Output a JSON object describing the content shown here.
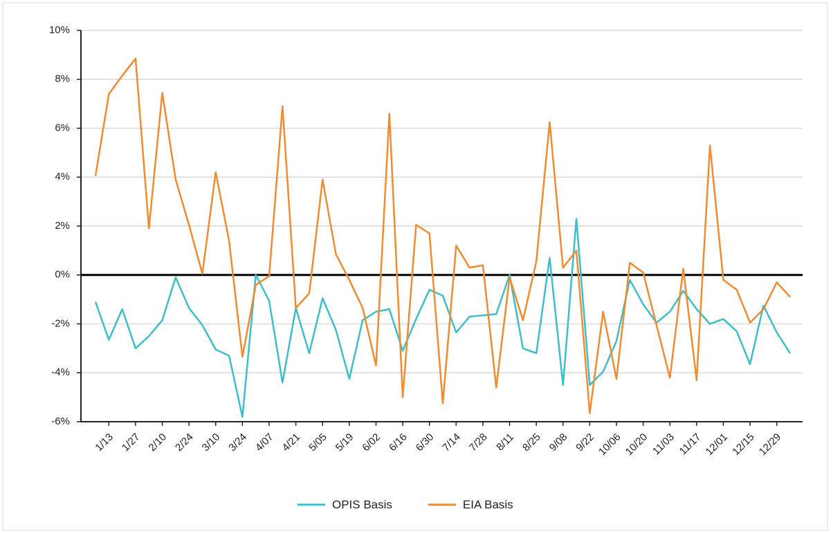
{
  "chart_data": {
    "type": "line",
    "categories": [
      null,
      "1/13",
      null,
      "1/27",
      null,
      "2/10",
      null,
      "2/24",
      null,
      "3/10",
      null,
      "3/24",
      null,
      "4/07",
      null,
      "4/21",
      null,
      "5/05",
      null,
      "5/19",
      null,
      "6/02",
      null,
      "6/16",
      null,
      "6/30",
      null,
      "7/14",
      null,
      "7/28",
      null,
      "8/11",
      null,
      "8/25",
      null,
      "9/08",
      null,
      "9/22",
      null,
      "10/06",
      null,
      "10/20",
      null,
      "11/03",
      null,
      "11/17",
      null,
      "12/01",
      null,
      "12/15",
      null,
      "12/29",
      null
    ],
    "series": [
      {
        "name": "OPIS Basis",
        "color": "#3bbfcc",
        "values": [
          -1.1,
          -2.65,
          -1.4,
          -3.0,
          -2.5,
          -1.85,
          -0.1,
          -1.35,
          -2.05,
          -3.05,
          -3.3,
          -5.8,
          0.0,
          -1.05,
          -4.4,
          -1.35,
          -3.2,
          -0.95,
          -2.25,
          -4.25,
          -1.85,
          -1.5,
          -1.4,
          -3.1,
          -1.8,
          -0.6,
          -0.85,
          -2.35,
          -1.7,
          -1.65,
          -1.6,
          0.0,
          -3.0,
          -3.2,
          0.7,
          -4.5,
          2.3,
          -4.5,
          -3.95,
          -2.7,
          -0.2,
          -1.2,
          -1.95,
          -1.5,
          -0.65,
          -1.4,
          -2.0,
          -1.8,
          -2.3,
          -3.65,
          -1.25,
          -2.35,
          -3.2
        ]
      },
      {
        "name": "EIA Basis",
        "color": "#f28a2e",
        "values": [
          4.05,
          7.4,
          8.15,
          8.85,
          1.9,
          7.45,
          3.9,
          2.05,
          0.05,
          4.2,
          1.4,
          -3.35,
          -0.4,
          -0.05,
          6.9,
          -1.35,
          -0.75,
          3.9,
          0.85,
          -0.2,
          -1.35,
          -3.7,
          6.6,
          -5.0,
          2.05,
          1.7,
          -5.25,
          1.2,
          0.3,
          0.4,
          -4.6,
          -0.1,
          -1.85,
          0.55,
          6.25,
          0.3,
          1.0,
          -5.65,
          -1.5,
          -4.25,
          0.5,
          0.1,
          -2.05,
          -4.2,
          0.25,
          -4.3,
          5.3,
          -0.2,
          -0.6,
          -1.95,
          -1.4,
          -0.3,
          -0.9
        ]
      }
    ],
    "ylim": [
      -6,
      10
    ],
    "yticks": [
      {
        "value": -6,
        "label": "-6%"
      },
      {
        "value": -4,
        "label": "-4%"
      },
      {
        "value": -2,
        "label": "-2%"
      },
      {
        "value": 0,
        "label": "0%"
      },
      {
        "value": 2,
        "label": "2%"
      },
      {
        "value": 4,
        "label": "4%"
      },
      {
        "value": 6,
        "label": "6%"
      },
      {
        "value": 8,
        "label": "8%"
      },
      {
        "value": 10,
        "label": "10%"
      }
    ],
    "grid": true,
    "legend": "bottom"
  }
}
